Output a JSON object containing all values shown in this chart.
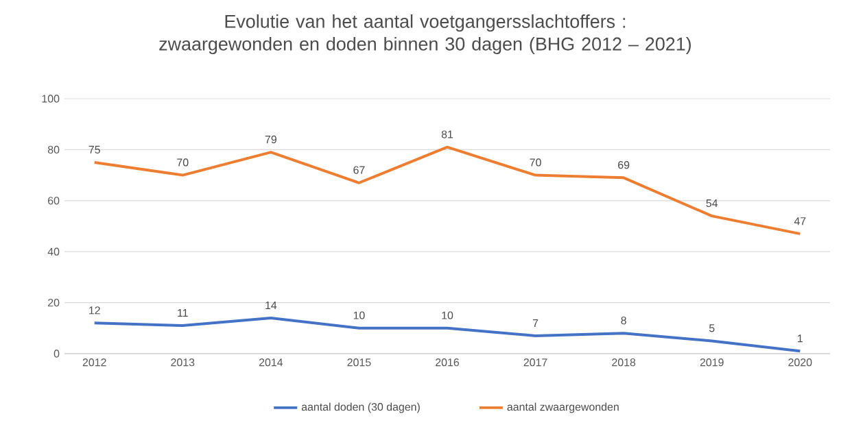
{
  "chart_data": {
    "type": "line",
    "title": "Evolutie van het aantal voetgangersslachtoffers : zwaargewonden en doden binnen 30 dagen (BHG 2012 – 2021)",
    "categories": [
      "2012",
      "2013",
      "2014",
      "2015",
      "2016",
      "2017",
      "2018",
      "2019",
      "2020"
    ],
    "series": [
      {
        "name": "aantal doden (30 dagen)",
        "color": "#4472c4",
        "values": [
          12,
          11,
          14,
          10,
          10,
          7,
          8,
          5,
          1
        ]
      },
      {
        "name": "aantal zwaargewonden",
        "color": "#ed7d31",
        "values": [
          75,
          70,
          79,
          67,
          81,
          70,
          69,
          54,
          47
        ]
      }
    ],
    "ylim": [
      0,
      100
    ],
    "yticks": [
      0,
      20,
      40,
      60,
      80,
      100
    ],
    "grid": "y",
    "legend": "bottom",
    "data_labels": true
  }
}
